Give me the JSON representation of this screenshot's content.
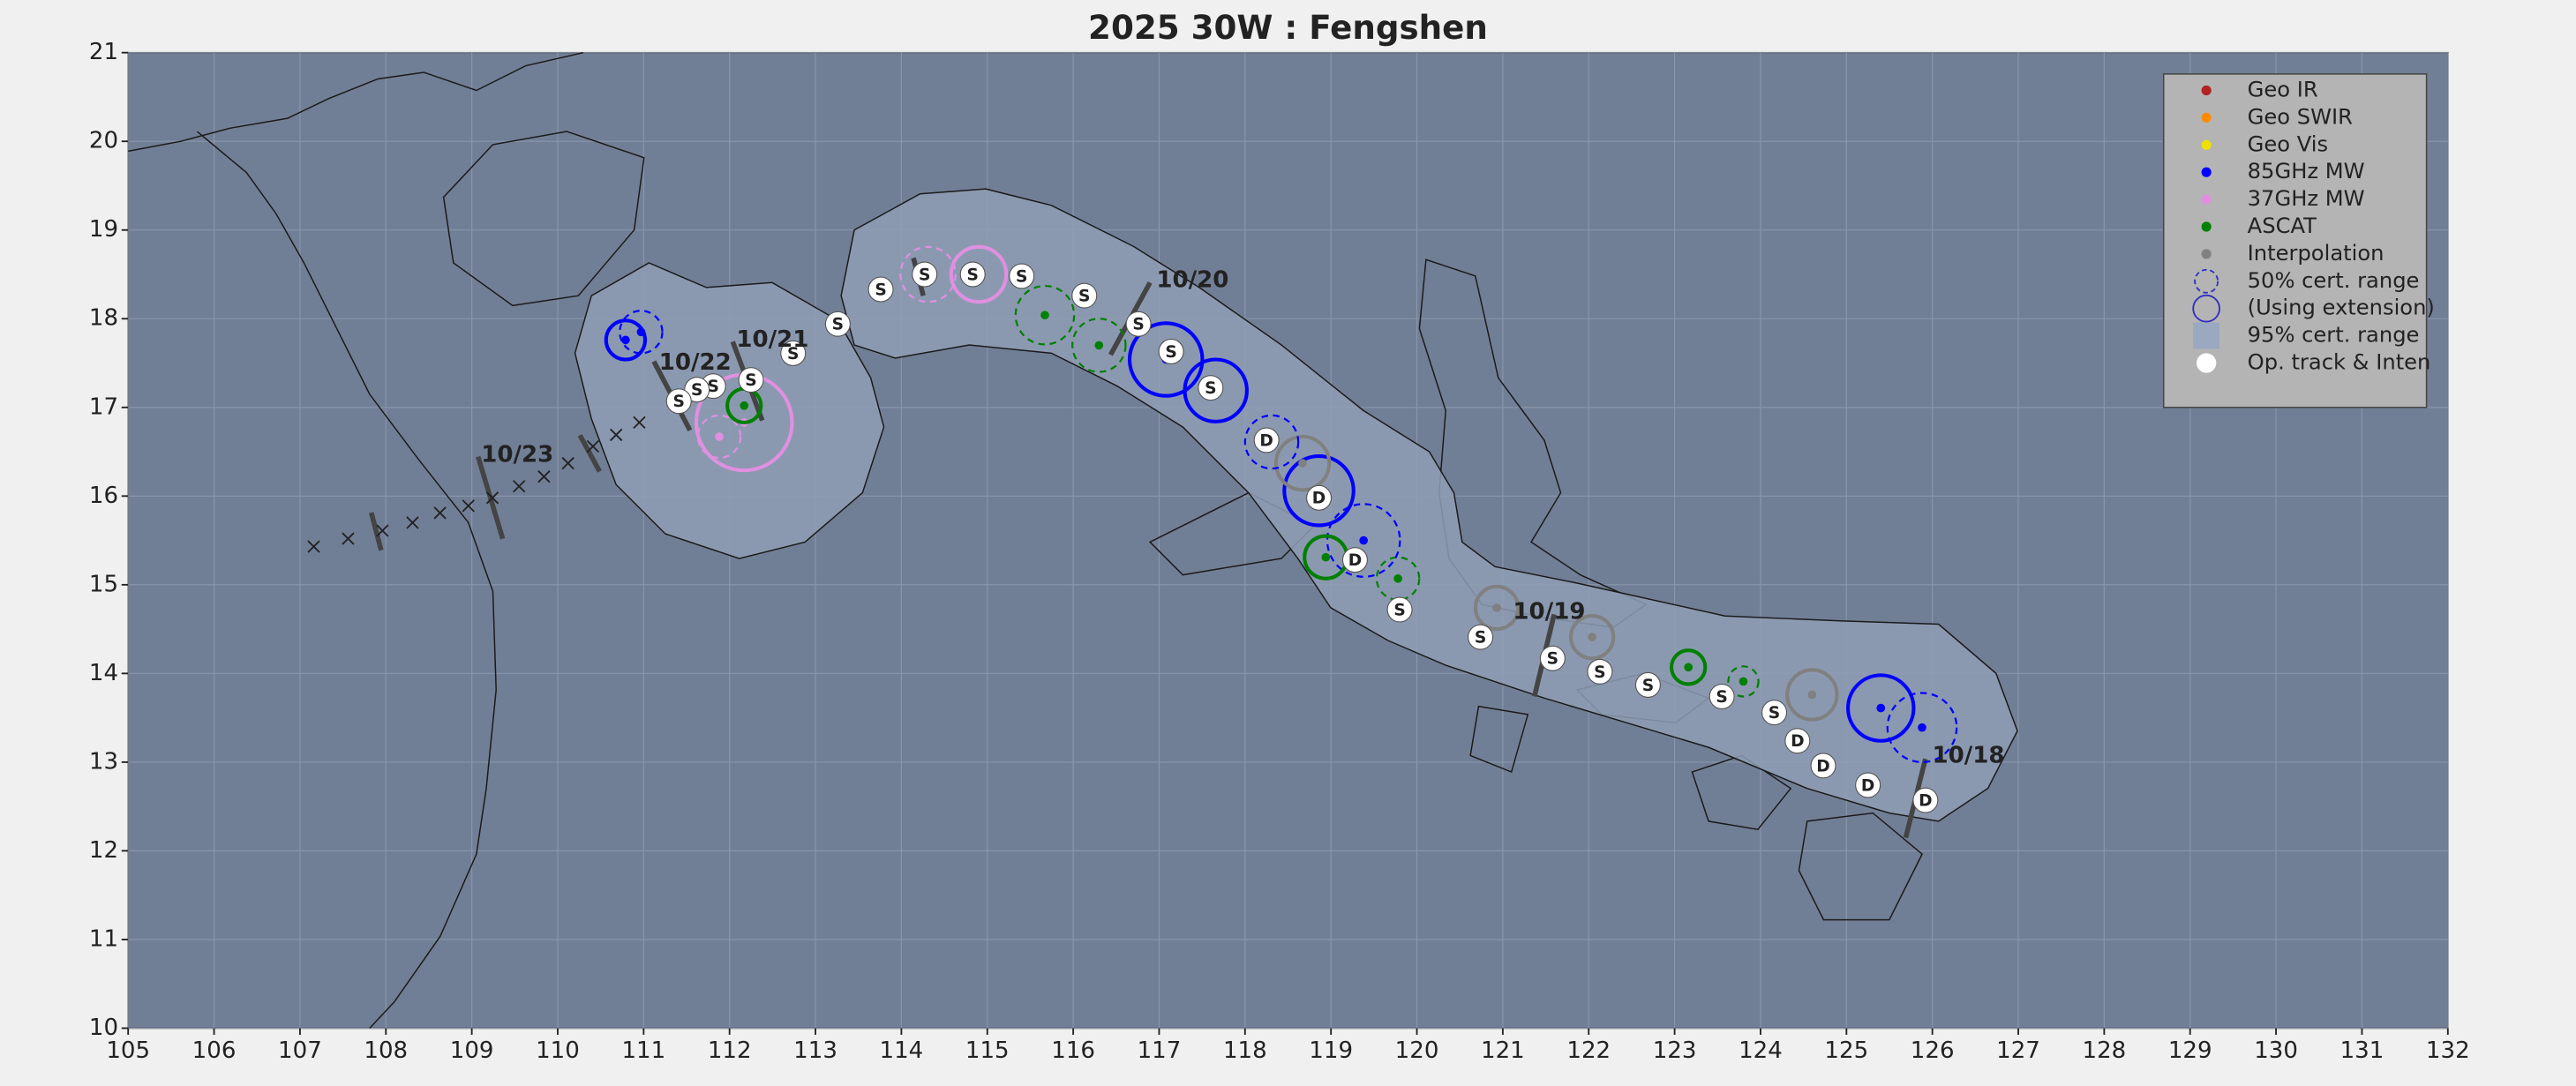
{
  "chart_data": {
    "type": "track",
    "title": "2025  30W :  Fengshen",
    "xlim": [
      105,
      132
    ],
    "ylim": [
      10,
      21
    ],
    "xticks": [
      105,
      106,
      107,
      108,
      109,
      110,
      111,
      112,
      113,
      114,
      115,
      116,
      117,
      118,
      119,
      120,
      121,
      122,
      123,
      124,
      125,
      126,
      127,
      128,
      129,
      130,
      131,
      132
    ],
    "yticks": [
      10,
      11,
      12,
      13,
      14,
      15,
      16,
      17,
      18,
      19,
      20,
      21
    ],
    "grid": true,
    "legend": [
      {
        "name": "Geo IR",
        "color": "#b22222",
        "marker": "dot"
      },
      {
        "name": "Geo SWIR",
        "color": "#ff8c00",
        "marker": "dot"
      },
      {
        "name": "Geo Vis",
        "color": "#f0e000",
        "marker": "dot"
      },
      {
        "name": "85GHz MW",
        "color": "#0000ff",
        "marker": "dot"
      },
      {
        "name": "37GHz MW",
        "color": "#e090e0",
        "marker": "dot"
      },
      {
        "name": "ASCAT",
        "color": "#008000",
        "marker": "dot"
      },
      {
        "name": "Interpolation",
        "color": "#808080",
        "marker": "dot"
      },
      {
        "name": "50% cert. range",
        "color": "#3030c0",
        "marker": "circle-dashed"
      },
      {
        "name": "(Using extension)",
        "color": "#3030c0",
        "marker": "circle"
      },
      {
        "name": "95% cert. range",
        "color": "#9aa8c0",
        "marker": "area"
      },
      {
        "name": "Op. track & Inten",
        "color": "#ffffff",
        "marker": "track"
      }
    ],
    "track": [
      {
        "lon": 125.92,
        "lat": 12.57,
        "label": "D"
      },
      {
        "lon": 125.25,
        "lat": 12.74,
        "label": "D"
      },
      {
        "lon": 124.73,
        "lat": 12.96,
        "label": "D"
      },
      {
        "lon": 124.43,
        "lat": 13.24,
        "label": "D"
      },
      {
        "lon": 124.16,
        "lat": 13.56,
        "label": "S"
      },
      {
        "lon": 123.55,
        "lat": 13.74,
        "label": "S"
      },
      {
        "lon": 122.69,
        "lat": 13.87,
        "label": "S"
      },
      {
        "lon": 122.13,
        "lat": 14.02,
        "label": "S"
      },
      {
        "lon": 121.58,
        "lat": 14.17,
        "label": "S"
      },
      {
        "lon": 120.74,
        "lat": 14.41,
        "label": "S"
      },
      {
        "lon": 119.8,
        "lat": 14.72,
        "label": "S"
      },
      {
        "lon": 119.28,
        "lat": 15.28,
        "label": "D"
      },
      {
        "lon": 118.86,
        "lat": 15.98,
        "label": "D"
      },
      {
        "lon": 118.25,
        "lat": 16.63,
        "label": "D"
      },
      {
        "lon": 117.6,
        "lat": 17.22,
        "label": "S"
      },
      {
        "lon": 117.14,
        "lat": 17.63,
        "label": "S"
      },
      {
        "lon": 116.76,
        "lat": 17.94,
        "label": "S"
      },
      {
        "lon": 116.13,
        "lat": 18.26,
        "label": "S"
      },
      {
        "lon": 115.4,
        "lat": 18.48,
        "label": "S"
      },
      {
        "lon": 114.83,
        "lat": 18.5,
        "label": "S"
      },
      {
        "lon": 114.27,
        "lat": 18.5,
        "label": "S"
      },
      {
        "lon": 113.76,
        "lat": 18.33,
        "label": "S"
      },
      {
        "lon": 113.26,
        "lat": 17.94,
        "label": "S"
      },
      {
        "lon": 112.74,
        "lat": 17.61,
        "label": "S"
      },
      {
        "lon": 112.25,
        "lat": 17.31,
        "label": "S"
      },
      {
        "lon": 111.81,
        "lat": 17.24,
        "label": "S"
      },
      {
        "lon": 111.62,
        "lat": 17.2,
        "label": "S"
      },
      {
        "lon": 111.41,
        "lat": 17.07,
        "label": "S"
      }
    ],
    "past_track": [
      {
        "lon": 110.95,
        "lat": 16.83
      },
      {
        "lon": 110.68,
        "lat": 16.69
      },
      {
        "lon": 110.41,
        "lat": 16.56
      },
      {
        "lon": 110.12,
        "lat": 16.37
      },
      {
        "lon": 109.84,
        "lat": 16.22
      },
      {
        "lon": 109.55,
        "lat": 16.11
      },
      {
        "lon": 109.24,
        "lat": 15.98
      },
      {
        "lon": 108.96,
        "lat": 15.89
      },
      {
        "lon": 108.63,
        "lat": 15.81
      },
      {
        "lon": 108.31,
        "lat": 15.7
      },
      {
        "lon": 107.96,
        "lat": 15.61
      },
      {
        "lon": 107.56,
        "lat": 15.52
      },
      {
        "lon": 107.16,
        "lat": 15.43
      }
    ],
    "fixes": [
      {
        "lon": 125.4,
        "lat": 13.61,
        "radius": 0.37,
        "color": "#0000ff",
        "dashed": false
      },
      {
        "lon": 125.88,
        "lat": 13.39,
        "radius": 0.39,
        "color": "#0000ff",
        "dashed": true
      },
      {
        "lon": 124.6,
        "lat": 13.76,
        "radius": 0.28,
        "color": "#808080",
        "dashed": false
      },
      {
        "lon": 123.8,
        "lat": 13.91,
        "radius": 0.17,
        "color": "#008000",
        "dashed": true
      },
      {
        "lon": 123.16,
        "lat": 14.07,
        "radius": 0.19,
        "color": "#008000",
        "dashed": false
      },
      {
        "lon": 122.04,
        "lat": 14.41,
        "radius": 0.24,
        "color": "#808080",
        "dashed": false
      },
      {
        "lon": 120.93,
        "lat": 14.74,
        "radius": 0.24,
        "color": "#808080",
        "dashed": false
      },
      {
        "lon": 119.78,
        "lat": 15.07,
        "radius": 0.24,
        "color": "#008000",
        "dashed": true
      },
      {
        "lon": 119.38,
        "lat": 15.5,
        "radius": 0.41,
        "color": "#0000ff",
        "dashed": true
      },
      {
        "lon": 118.94,
        "lat": 15.31,
        "radius": 0.24,
        "color": "#008000",
        "dashed": false
      },
      {
        "lon": 118.86,
        "lat": 16.06,
        "radius": 0.39,
        "color": "#0000ff",
        "dashed": false
      },
      {
        "lon": 118.67,
        "lat": 16.37,
        "radius": 0.3,
        "color": "#808080",
        "dashed": false
      },
      {
        "lon": 118.31,
        "lat": 16.61,
        "radius": 0.3,
        "color": "#0000ff",
        "dashed": true
      },
      {
        "lon": 117.66,
        "lat": 17.19,
        "radius": 0.35,
        "color": "#0000ff",
        "dashed": false
      },
      {
        "lon": 117.08,
        "lat": 17.54,
        "radius": 0.41,
        "color": "#0000ff",
        "dashed": false
      },
      {
        "lon": 116.3,
        "lat": 17.7,
        "radius": 0.3,
        "color": "#008000",
        "dashed": true
      },
      {
        "lon": 115.67,
        "lat": 18.04,
        "radius": 0.33,
        "color": "#008000",
        "dashed": true
      },
      {
        "lon": 114.9,
        "lat": 18.5,
        "radius": 0.31,
        "color": "#e090e0",
        "dashed": false
      },
      {
        "lon": 114.31,
        "lat": 18.5,
        "radius": 0.31,
        "color": "#e090e0",
        "dashed": true
      },
      {
        "lon": 112.17,
        "lat": 16.83,
        "radius": 0.54,
        "color": "#e090e0",
        "dashed": false
      },
      {
        "lon": 111.88,
        "lat": 16.67,
        "radius": 0.24,
        "color": "#e090e0",
        "dashed": true
      },
      {
        "lon": 112.17,
        "lat": 17.02,
        "radius": 0.19,
        "color": "#008000",
        "dashed": false
      },
      {
        "lon": 110.79,
        "lat": 17.76,
        "radius": 0.22,
        "color": "#0000ff",
        "dashed": false
      },
      {
        "lon": 110.97,
        "lat": 17.85,
        "radius": 0.24,
        "color": "#0000ff",
        "dashed": true
      }
    ],
    "date_labels": [
      {
        "lon": 126.42,
        "lat": 13.07,
        "text": "10/18"
      },
      {
        "lon": 121.54,
        "lat": 14.69,
        "text": "10/19"
      },
      {
        "lon": 117.39,
        "lat": 18.43,
        "text": "10/20"
      },
      {
        "lon": 112.5,
        "lat": 17.76,
        "text": "10/21"
      },
      {
        "lon": 111.6,
        "lat": 17.5,
        "text": "10/22"
      },
      {
        "lon": 109.53,
        "lat": 16.46,
        "text": "10/23"
      }
    ]
  }
}
